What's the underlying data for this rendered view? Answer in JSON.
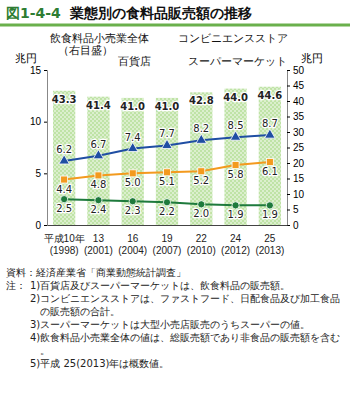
{
  "chart_data": {
    "type": "bar",
    "figure_label": "図1-4-4",
    "title": "業態別の食料品販売額の推移",
    "y_label": "兆円",
    "y2_label": "兆円",
    "annotations": [
      "（右目盛）"
    ],
    "categories": [
      "平成10年\n(1998)",
      "13\n(2001)",
      "16\n(2004)",
      "19\n(2007)",
      "22\n(2010)",
      "24\n(2012)",
      "25\n(2013)"
    ],
    "ylim": [
      0,
      15
    ],
    "yticks": [
      0,
      5,
      10,
      15
    ],
    "y2lim": [
      0,
      50
    ],
    "y2ticks": [
      0,
      5,
      10,
      15,
      20,
      25,
      30,
      35,
      40,
      45,
      50
    ],
    "data_labels": true,
    "series": [
      {
        "name": "飲食料品小売業全体",
        "type": "bar",
        "axis": "y2",
        "color": "#bfe3a6",
        "values": [
          43.3,
          41.4,
          41.0,
          41.0,
          42.8,
          44.0,
          44.6
        ],
        "value_labels": [
          "43.3",
          "41.4",
          "41.0",
          "41.0",
          "42.8",
          "44.0",
          "44.6"
        ]
      },
      {
        "name": "コンビニエンスストア",
        "type": "line",
        "color": "#1f4ea3",
        "marker": "triangle",
        "values": [
          6.2,
          6.7,
          7.4,
          7.7,
          8.2,
          8.5,
          8.7
        ],
        "value_labels": [
          "6.2",
          "6.7",
          "7.4",
          "7.7",
          "8.2",
          "8.5",
          "8.7"
        ]
      },
      {
        "name": "スーパーマーケット",
        "type": "line",
        "color": "#f39a1e",
        "marker": "square",
        "values": [
          4.4,
          4.8,
          5.0,
          5.1,
          5.2,
          5.8,
          6.1
        ],
        "value_labels": [
          "4.4",
          "4.8",
          "5.0",
          "5.1",
          "5.2",
          "5.8",
          "6.1"
        ]
      },
      {
        "name": "百貨店",
        "type": "line",
        "color": "#1e7a3c",
        "marker": "circle",
        "values": [
          2.5,
          2.4,
          2.3,
          2.2,
          2.0,
          1.9,
          1.9
        ],
        "value_labels": [
          "2.5",
          "2.4",
          "2.3",
          "2.2",
          "2.0",
          "1.9",
          "1.9"
        ]
      }
    ],
    "source": "資料：経済産業省「商業動態統計調査」",
    "notes_label": "注：",
    "notes": [
      "1)百貨店及びスーパーマーケットは、飲食料品の販売額。",
      "2)コンビニエンスストアは、ファストフード、日配食品及び加工食品の販売額の合計。",
      "3)スーパーマーケットは大型小売店販売のうちスーパーの値。",
      "4)飲食料品小売業全体の値は、総販売額であり非食品の販売額を含む。",
      "5)平成 25(2013)年は概数値。"
    ]
  }
}
